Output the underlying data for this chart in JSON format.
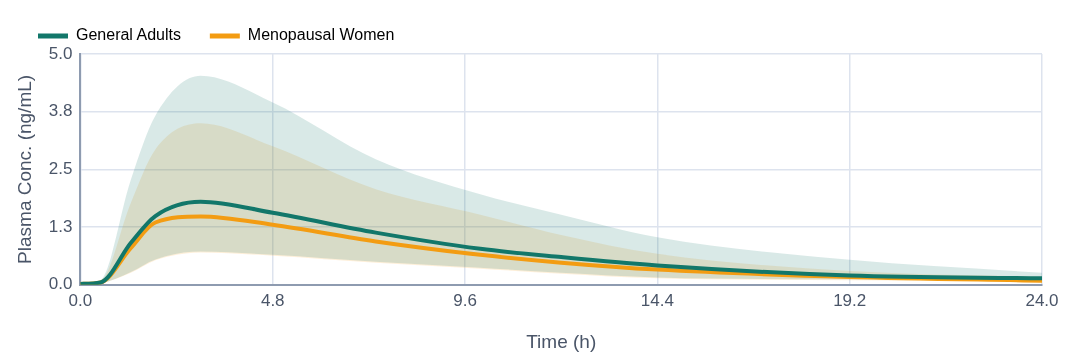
{
  "chart_data": {
    "type": "line",
    "xlabel": "Time (h)",
    "ylabel": "Plasma Conc. (ng/mL)",
    "xlim": [
      0,
      24
    ],
    "xticks": [
      {
        "value": 0,
        "label": "0.0"
      },
      4.8,
      9.6,
      14.4,
      19.2,
      {
        "value": 24,
        "label": "24.0"
      }
    ],
    "ylim": [
      0,
      5
    ],
    "yticks": [
      {
        "value": 0,
        "label": "0.0"
      },
      {
        "value": 1.25,
        "label": "1.3"
      },
      2.5,
      {
        "value": 3.75,
        "label": "3.8"
      },
      {
        "value": 5,
        "label": "5.0"
      }
    ],
    "grid": true,
    "legend": "top left",
    "marker": "none",
    "line_style": "solid",
    "x": [
      0,
      0.5,
      1.26,
      1.87,
      3,
      4.8,
      7.37,
      9.98,
      12,
      14.4,
      19.2,
      24
    ],
    "series": [
      {
        "name": "General Adults",
        "color": "#12776a",
        "values": [
          0.02,
          0.05,
          0.91,
          1.49,
          1.8,
          1.56,
          1.13,
          0.78,
          0.6,
          0.42,
          0.2,
          0.14
        ],
        "lower": [
          0,
          0.03,
          0.28,
          0.55,
          0.72,
          0.65,
          0.5,
          0.37,
          0.26,
          0.16,
          0.12,
          0.1
        ],
        "upper": [
          0.02,
          0.1,
          2.28,
          3.66,
          4.53,
          3.95,
          2.72,
          1.96,
          1.52,
          1.03,
          0.54,
          0.26
        ]
      },
      {
        "name": "Menopausal Women",
        "color": "#f39c12",
        "values": [
          0.02,
          0.05,
          0.8,
          1.35,
          1.48,
          1.3,
          0.94,
          0.65,
          0.48,
          0.33,
          0.17,
          0.09
        ],
        "lower": [
          0,
          0.03,
          0.26,
          0.53,
          0.7,
          0.63,
          0.48,
          0.35,
          0.24,
          0.14,
          0.1,
          0.08
        ],
        "upper": [
          0.02,
          0.08,
          1.78,
          2.93,
          3.5,
          3.0,
          2.07,
          1.52,
          1.08,
          0.67,
          0.3,
          0.17
        ]
      }
    ]
  }
}
